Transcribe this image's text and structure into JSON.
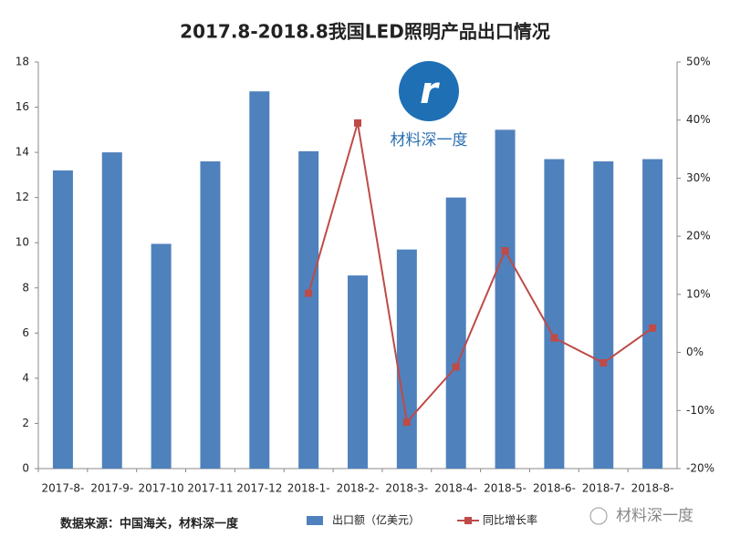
{
  "chart_data": {
    "type": "combo",
    "title": "2017.8-2018.8我国LED照明产品出口情况",
    "categories": [
      "2017-8-",
      "2017-9-",
      "2017-10",
      "2017-11",
      "2017-12",
      "2018-1-",
      "2018-2-",
      "2018-3-",
      "2018-4-",
      "2018-5-",
      "2018-6-",
      "2018-7-",
      "2018-8-"
    ],
    "series": [
      {
        "name": "出口额（亿美元）",
        "type": "bar",
        "color": "#4f81bd",
        "values": [
          13.2,
          14.0,
          9.95,
          13.6,
          16.7,
          14.05,
          8.55,
          9.7,
          12.0,
          15.0,
          13.7,
          13.6,
          13.7
        ]
      },
      {
        "name": "同比增长率",
        "type": "line",
        "axis": "y2",
        "color": "#be4b48",
        "values": [
          null,
          null,
          null,
          null,
          null,
          10.2,
          39.5,
          -12.0,
          -2.5,
          17.5,
          2.5,
          -1.8,
          4.2
        ]
      }
    ],
    "ylim": [
      0,
      18
    ],
    "yticks": [
      0,
      2,
      4,
      6,
      8,
      10,
      12,
      14,
      16,
      18
    ],
    "y2lim": [
      -20,
      50
    ],
    "y2ticks": [
      {
        "value": -20,
        "label": "-20%"
      },
      {
        "value": -10,
        "label": "-10%"
      },
      {
        "value": 0,
        "label": "0%"
      },
      {
        "value": 10,
        "label": "10%"
      },
      {
        "value": 20,
        "label": "20%"
      },
      {
        "value": 30,
        "label": "30%"
      },
      {
        "value": 40,
        "label": "40%"
      },
      {
        "value": 50,
        "label": "50%"
      }
    ],
    "grid": false,
    "source": "数据来源：中国海关，材料深一度",
    "logo_text": "材料深一度",
    "watermark": "材料深一度"
  }
}
